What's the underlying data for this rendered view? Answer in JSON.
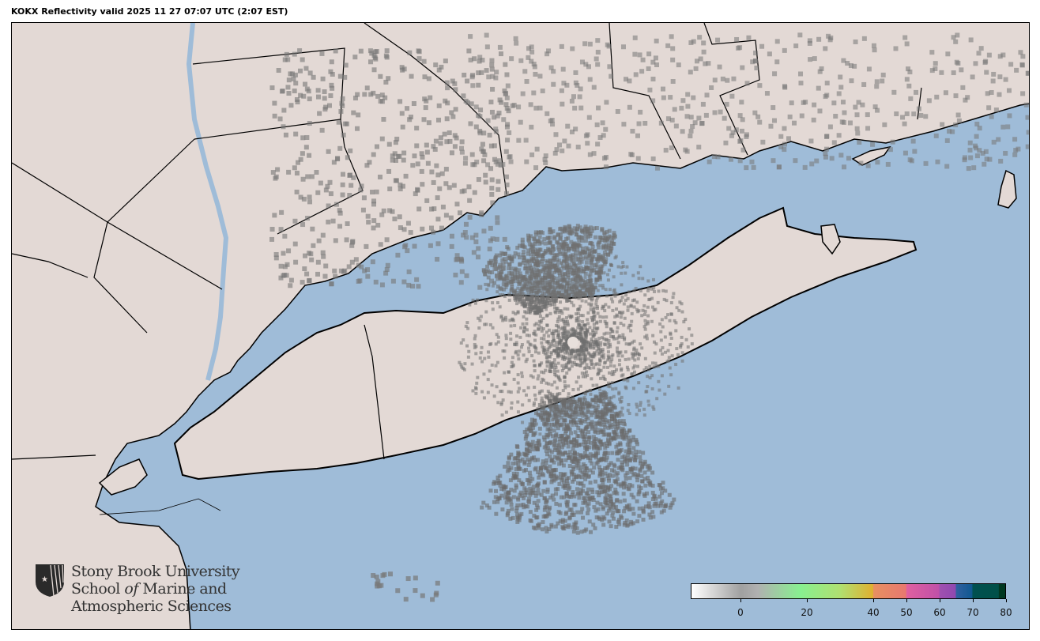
{
  "title": "KOKX Reflectivity valid 2025 11 27 07:07 UTC (2:07 EST)",
  "colors": {
    "water": "#9fbcd8",
    "land": "#e3d9d5",
    "border": "#000000",
    "echo": "#7a7a7a"
  },
  "logo": {
    "line1": "Stony Brook University",
    "line2a": "School ",
    "line2b": "of",
    "line2c": " Marine and",
    "line3": "Atmospheric Sciences"
  },
  "colorbar": {
    "min": -15,
    "max": 80,
    "ticks": [
      "0",
      "20",
      "40",
      "50",
      "60",
      "70",
      "80"
    ],
    "tick_values": [
      0,
      20,
      40,
      50,
      60,
      70,
      80
    ],
    "stops": [
      {
        "v": -15,
        "c": "#ffffff"
      },
      {
        "v": 0,
        "c": "#a0a0a0"
      },
      {
        "v": 5,
        "c": "#b0b0b0"
      },
      {
        "v": 18,
        "c": "#88f090"
      },
      {
        "v": 30,
        "c": "#b0e070"
      },
      {
        "v": 40,
        "c": "#e0b030"
      },
      {
        "v": 40.1,
        "c": "#e89060"
      },
      {
        "v": 50,
        "c": "#e87870"
      },
      {
        "v": 50.1,
        "c": "#e060a0"
      },
      {
        "v": 60,
        "c": "#c050a8"
      },
      {
        "v": 60.1,
        "c": "#a050b0"
      },
      {
        "v": 65,
        "c": "#9048b0"
      },
      {
        "v": 65.1,
        "c": "#3060a0"
      },
      {
        "v": 70,
        "c": "#105890"
      },
      {
        "v": 70.1,
        "c": "#005050"
      },
      {
        "v": 78,
        "c": "#005048"
      },
      {
        "v": 78.1,
        "c": "#003820"
      },
      {
        "v": 80,
        "c": "#003820"
      }
    ]
  }
}
